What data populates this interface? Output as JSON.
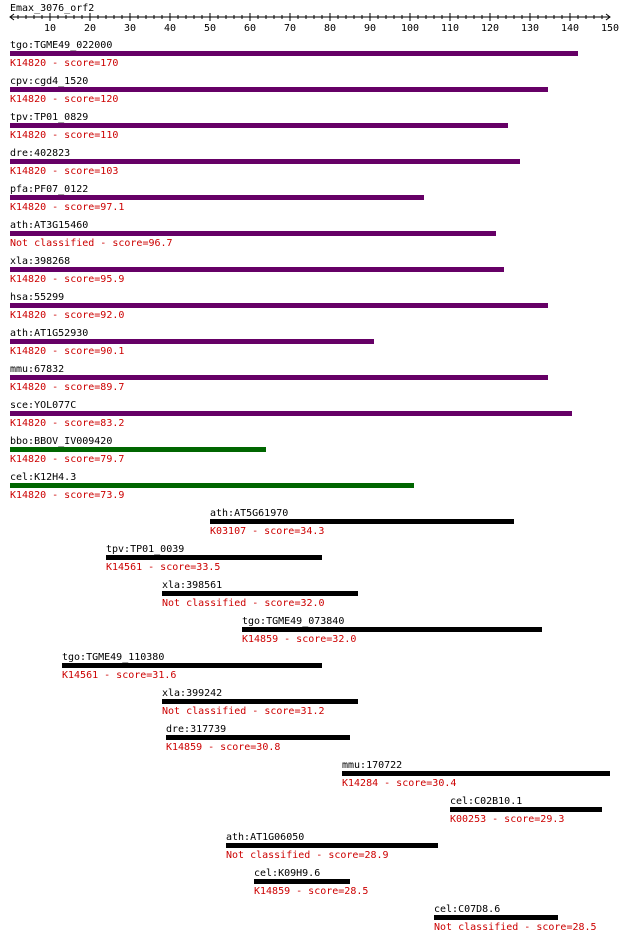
{
  "query": {
    "title": "Emax_3076_orf2",
    "axis_min": 0,
    "axis_max": 150,
    "axis_ticks": [
      10,
      20,
      30,
      40,
      50,
      60,
      70,
      80,
      90,
      100,
      110,
      120,
      130,
      140,
      150
    ]
  },
  "colors": {
    "purple": "#660066",
    "green": "#006600",
    "black": "#000000",
    "label": "#cc0000"
  },
  "hits": [
    {
      "name": "tgo:TGME49_022000",
      "info": "K14820 - score=170",
      "start": 0,
      "end": 142,
      "color": "purple"
    },
    {
      "name": "cpv:cgd4_1520",
      "info": "K14820 - score=120",
      "start": 0,
      "end": 134.5,
      "color": "purple"
    },
    {
      "name": "tpv:TP01_0829",
      "info": "K14820 - score=110",
      "start": 0,
      "end": 124.5,
      "color": "purple"
    },
    {
      "name": "dre:402823",
      "info": "K14820 - score=103",
      "start": 0,
      "end": 127.5,
      "color": "purple"
    },
    {
      "name": "pfa:PF07_0122",
      "info": "K14820 - score=97.1",
      "start": 0,
      "end": 103.5,
      "color": "purple"
    },
    {
      "name": "ath:AT3G15460",
      "info": "Not classified - score=96.7",
      "start": 0,
      "end": 121.5,
      "color": "purple"
    },
    {
      "name": "xla:398268",
      "info": "K14820 - score=95.9",
      "start": 0,
      "end": 123.5,
      "color": "purple"
    },
    {
      "name": "hsa:55299",
      "info": "K14820 - score=92.0",
      "start": 0,
      "end": 134.5,
      "color": "purple"
    },
    {
      "name": "ath:AT1G52930",
      "info": "K14820 - score=90.1",
      "start": 0,
      "end": 91,
      "color": "purple"
    },
    {
      "name": "mmu:67832",
      "info": "K14820 - score=89.7",
      "start": 0,
      "end": 134.5,
      "color": "purple"
    },
    {
      "name": "sce:YOL077C",
      "info": "K14820 - score=83.2",
      "start": 0,
      "end": 140.5,
      "color": "purple"
    },
    {
      "name": "bbo:BBOV_IV009420",
      "info": "K14820 - score=79.7",
      "start": 0,
      "end": 64,
      "color": "green"
    },
    {
      "name": "cel:K12H4.3",
      "info": "K14820 - score=73.9",
      "start": 0,
      "end": 101,
      "color": "green"
    },
    {
      "name": "ath:AT5G61970",
      "info": "K03107 - score=34.3",
      "start": 50,
      "end": 126,
      "color": "black"
    },
    {
      "name": "tpv:TP01_0039",
      "info": "K14561 - score=33.5",
      "start": 24,
      "end": 78,
      "color": "black"
    },
    {
      "name": "xla:398561",
      "info": "Not classified - score=32.0",
      "start": 38,
      "end": 87,
      "color": "black"
    },
    {
      "name": "tgo:TGME49_073840",
      "info": "K14859 - score=32.0",
      "start": 58,
      "end": 133,
      "color": "black"
    },
    {
      "name": "tgo:TGME49_110380",
      "info": "K14561 - score=31.6",
      "start": 13,
      "end": 78,
      "color": "black"
    },
    {
      "name": "xla:399242",
      "info": "Not classified - score=31.2",
      "start": 38,
      "end": 87,
      "color": "black"
    },
    {
      "name": "dre:317739",
      "info": "K14859 - score=30.8",
      "start": 39,
      "end": 85,
      "color": "black"
    },
    {
      "name": "mmu:170722",
      "info": "K14284 - score=30.4",
      "start": 83,
      "end": 150,
      "color": "black"
    },
    {
      "name": "cel:C02B10.1",
      "info": "K00253 - score=29.3",
      "start": 110,
      "end": 148,
      "color": "black"
    },
    {
      "name": "ath:AT1G06050",
      "info": "Not classified - score=28.9",
      "start": 54,
      "end": 107,
      "color": "black"
    },
    {
      "name": "cel:K09H9.6",
      "info": "K14859 - score=28.5",
      "start": 61,
      "end": 85,
      "color": "black"
    },
    {
      "name": "cel:C07D8.6",
      "info": "Not classified - score=28.5",
      "start": 106,
      "end": 137,
      "color": "black"
    }
  ]
}
